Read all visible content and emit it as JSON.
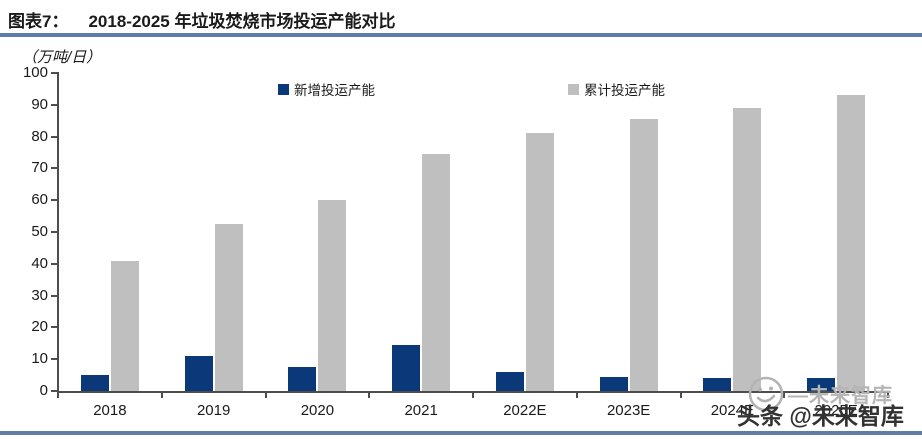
{
  "figure": {
    "label": "图表7：",
    "title": "2018-2025 年垃圾焚烧市场投运产能对比",
    "unit_label": "（万吨/日）"
  },
  "chart_data": {
    "type": "bar",
    "title": "2018-2025 年垃圾焚烧市场投运产能对比",
    "categories": [
      "2018",
      "2019",
      "2020",
      "2021",
      "2022E",
      "2023E",
      "2024E",
      "2025E"
    ],
    "series": [
      {
        "name": "新增投运产能",
        "color": "#0b3878",
        "values": [
          5,
          11,
          7.5,
          14.5,
          6,
          4.5,
          4,
          4
        ]
      },
      {
        "name": "累计投运产能",
        "color": "#bfbfbf",
        "values": [
          41,
          52.5,
          60,
          74.5,
          81,
          85.5,
          89,
          93
        ]
      }
    ],
    "xlabel": "",
    "ylabel": "（万吨/日）",
    "ylim": [
      0,
      100
    ],
    "yticks": [
      0,
      10,
      20,
      30,
      40,
      50,
      60,
      70,
      80,
      90,
      100
    ],
    "grid": false,
    "legend_position": "top"
  },
  "watermark": {
    "logo_text": "—未来智库",
    "badge_text": "头条 @未来智库",
    "smiley_icon": "smiley-face-icon"
  },
  "colors": {
    "accent_rule": "#5f7da8",
    "axis": "#4d4d4d",
    "bar_new": "#0b3878",
    "bar_cumulative": "#bfbfbf",
    "watermark_gray": "#b5b5b5",
    "watermark_dark": "#323232",
    "text": "#1a1a1a"
  }
}
